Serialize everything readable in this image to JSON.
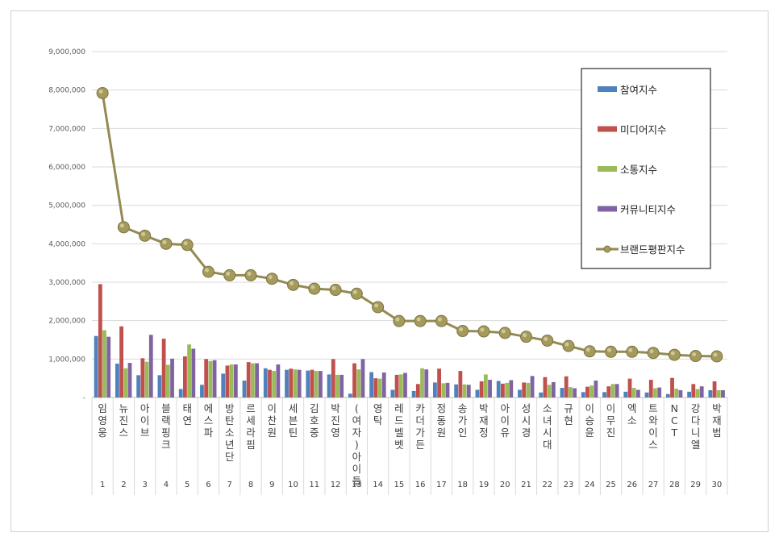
{
  "chart_data": {
    "type": "bar",
    "title": "",
    "xlabel": "",
    "ylabel": "",
    "ylim": [
      0,
      9000000
    ],
    "yticks": [
      "-",
      "1,000,000",
      "2,000,000",
      "3,000,000",
      "4,000,000",
      "5,000,000",
      "6,000,000",
      "7,000,000",
      "8,000,000",
      "9,000,000"
    ],
    "grid": true,
    "legend_position": "right",
    "categories": [
      "임영웅",
      "뉴진스",
      "아이브",
      "블랙핑크",
      "태연",
      "에스파",
      "방탄소년단",
      "르세라핌",
      "이찬원",
      "세븐틴",
      "김호중",
      "박진영",
      "(여자)아이들",
      "영탁",
      "레드벨벳",
      "카더가든",
      "정동원",
      "송가인",
      "박재정",
      "아이유",
      "성시경",
      "소녀시대",
      "규현",
      "이승윤",
      "이무진",
      "엑소",
      "트와이스",
      "NCT",
      "강다니엘",
      "박재범"
    ],
    "ranks": [
      "1",
      "2",
      "3",
      "4",
      "5",
      "6",
      "7",
      "8",
      "9",
      "10",
      "11",
      "12",
      "13",
      "14",
      "15",
      "16",
      "17",
      "18",
      "19",
      "20",
      "21",
      "22",
      "23",
      "24",
      "25",
      "26",
      "27",
      "28",
      "29",
      "30"
    ],
    "series": [
      {
        "name": "참여지수",
        "kind": "bar",
        "color": "#4f81bd",
        "values": [
          1600000,
          880000,
          580000,
          580000,
          220000,
          330000,
          620000,
          440000,
          760000,
          720000,
          700000,
          600000,
          100000,
          660000,
          200000,
          170000,
          390000,
          340000,
          200000,
          430000,
          200000,
          130000,
          250000,
          140000,
          140000,
          150000,
          130000,
          90000,
          150000,
          190000
        ]
      },
      {
        "name": "미디어지수",
        "kind": "bar",
        "color": "#c0504d",
        "values": [
          2950000,
          1850000,
          1020000,
          1530000,
          1070000,
          1000000,
          830000,
          920000,
          720000,
          750000,
          720000,
          1000000,
          890000,
          500000,
          590000,
          350000,
          750000,
          690000,
          420000,
          360000,
          390000,
          530000,
          550000,
          280000,
          290000,
          490000,
          460000,
          510000,
          350000,
          420000
        ]
      },
      {
        "name": "소통지수",
        "kind": "bar",
        "color": "#9bbb59",
        "values": [
          1750000,
          760000,
          930000,
          850000,
          1380000,
          950000,
          860000,
          890000,
          690000,
          730000,
          690000,
          590000,
          730000,
          490000,
          600000,
          760000,
          370000,
          340000,
          600000,
          380000,
          380000,
          330000,
          270000,
          310000,
          350000,
          250000,
          240000,
          230000,
          220000,
          190000
        ]
      },
      {
        "name": "커뮤니티지수",
        "kind": "bar",
        "color": "#8064a2",
        "values": [
          1580000,
          900000,
          1630000,
          1010000,
          1270000,
          970000,
          860000,
          890000,
          860000,
          720000,
          690000,
          590000,
          1000000,
          650000,
          640000,
          730000,
          380000,
          330000,
          460000,
          450000,
          560000,
          400000,
          240000,
          440000,
          350000,
          200000,
          260000,
          190000,
          290000,
          190000
        ]
      },
      {
        "name": "브랜드평판지수",
        "kind": "line",
        "color": "#948a54",
        "values": [
          7920000,
          4430000,
          4210000,
          4000000,
          3970000,
          3270000,
          3180000,
          3180000,
          3090000,
          2930000,
          2830000,
          2800000,
          2700000,
          2350000,
          1990000,
          1990000,
          1990000,
          1730000,
          1720000,
          1680000,
          1580000,
          1480000,
          1340000,
          1200000,
          1190000,
          1190000,
          1160000,
          1110000,
          1080000,
          1070000
        ]
      }
    ]
  }
}
